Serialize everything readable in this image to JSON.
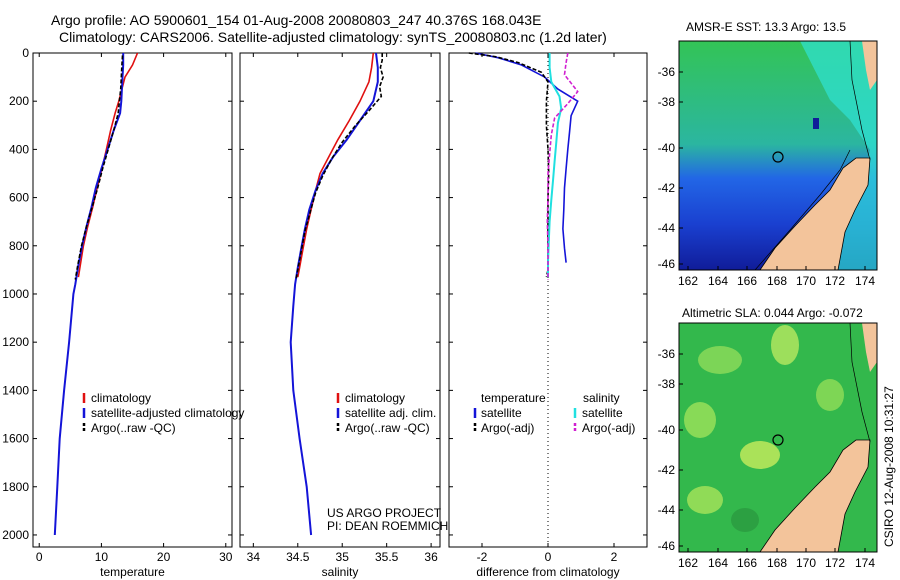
{
  "header": {
    "line1": "Argo profile: AO 5900601_154 01-Aug-2008 20080803_247 40.376S 168.043E",
    "line2": "Climatology: CARS2006. Satellite-adjusted climatology: synTS_20080803.nc (1.2d later)"
  },
  "side_label": "CSIRO 12-Aug-2008 10:31:27",
  "maps": {
    "sst_title": "AMSR-E SST: 13.3 Argo: 13.5",
    "sla_title": "Altimetric SLA: 0.044 Argo: -0.072",
    "lat_ticks": [
      "-36",
      "-38",
      "-40",
      "-42",
      "-44",
      "-46"
    ],
    "lon_ticks": [
      "162",
      "164",
      "166",
      "168",
      "170",
      "172",
      "174"
    ],
    "colors": {
      "ocean_green": "#33c456",
      "ocean_cyan": "#2fe3d6",
      "ocean_blue": "#1155ee",
      "land": "#f3c49b"
    }
  },
  "credit": {
    "line1": "US ARGO PROJECT",
    "line2": "PI: DEAN ROEMMICH"
  },
  "colors": {
    "climatology": "#e01010",
    "satellite": "#1414d8",
    "argo": "#000000",
    "sal_sat": "#20e0e0",
    "sal_argo": "#d020d0"
  },
  "chart_data": [
    {
      "type": "line",
      "xlabel": "temperature",
      "ylim": [
        2050,
        0
      ],
      "xlim": [
        -1,
        31
      ],
      "x_ticks": [
        0,
        10,
        20,
        30
      ],
      "y_ticks": [
        0,
        200,
        400,
        600,
        800,
        1000,
        1200,
        1400,
        1600,
        1800,
        2000
      ],
      "legend": [
        "climatology",
        "satellite-adjusted climatology",
        "Argo(..raw -QC)"
      ],
      "series": [
        {
          "name": "climatology",
          "points": [
            [
              15.8,
              0
            ],
            [
              15.0,
              50
            ],
            [
              13.8,
              100
            ],
            [
              13.3,
              150
            ],
            [
              12.8,
              200
            ],
            [
              12.2,
              250
            ],
            [
              11.5,
              320
            ],
            [
              10.8,
              400
            ],
            [
              10.1,
              480
            ],
            [
              9.3,
              560
            ],
            [
              8.6,
              640
            ],
            [
              7.8,
              720
            ],
            [
              7.1,
              800
            ],
            [
              6.6,
              880
            ],
            [
              6.3,
              930
            ]
          ]
        },
        {
          "name": "satellite-adjusted climatology",
          "points": [
            [
              13.5,
              0
            ],
            [
              13.5,
              50
            ],
            [
              13.4,
              100
            ],
            [
              13.3,
              150
            ],
            [
              13.2,
              200
            ],
            [
              13.0,
              250
            ],
            [
              12.0,
              320
            ],
            [
              11.0,
              400
            ],
            [
              10.0,
              480
            ],
            [
              9.1,
              560
            ],
            [
              8.4,
              640
            ],
            [
              7.6,
              720
            ],
            [
              6.9,
              800
            ],
            [
              6.3,
              880
            ],
            [
              5.8,
              960
            ],
            [
              5.5,
              1000
            ],
            [
              4.8,
              1200
            ],
            [
              4.0,
              1400
            ],
            [
              3.3,
              1600
            ],
            [
              2.9,
              1800
            ],
            [
              2.5,
              2000
            ]
          ]
        },
        {
          "name": "Argo(..raw -QC)",
          "points": [
            [
              13.4,
              10
            ],
            [
              13.3,
              50
            ],
            [
              13.2,
              100
            ],
            [
              13.1,
              150
            ],
            [
              12.9,
              200
            ],
            [
              12.7,
              250
            ],
            [
              12.0,
              320
            ],
            [
              11.1,
              400
            ],
            [
              10.2,
              480
            ],
            [
              9.4,
              560
            ],
            [
              8.5,
              640
            ],
            [
              7.6,
              720
            ],
            [
              6.8,
              800
            ],
            [
              6.2,
              880
            ],
            [
              5.8,
              940
            ]
          ]
        }
      ]
    },
    {
      "type": "line",
      "xlabel": "salinity",
      "ylim": [
        2050,
        0
      ],
      "xlim": [
        33.85,
        36.1
      ],
      "x_ticks": [
        34,
        34.5,
        35,
        35.5,
        36
      ],
      "legend": [
        "climatology",
        "satellite adj. clim.",
        "Argo(..raw -QC)"
      ],
      "series": [
        {
          "name": "climatology",
          "points": [
            [
              35.35,
              0
            ],
            [
              35.33,
              60
            ],
            [
              35.3,
              120
            ],
            [
              35.2,
              200
            ],
            [
              35.08,
              280
            ],
            [
              34.95,
              360
            ],
            [
              34.85,
              430
            ],
            [
              34.75,
              500
            ],
            [
              34.7,
              570
            ],
            [
              34.65,
              650
            ],
            [
              34.6,
              730
            ],
            [
              34.56,
              810
            ],
            [
              34.52,
              890
            ],
            [
              34.5,
              930
            ]
          ]
        },
        {
          "name": "satellite adj. clim.",
          "points": [
            [
              35.38,
              0
            ],
            [
              35.4,
              60
            ],
            [
              35.4,
              120
            ],
            [
              35.35,
              200
            ],
            [
              35.2,
              280
            ],
            [
              35.05,
              360
            ],
            [
              34.9,
              430
            ],
            [
              34.78,
              500
            ],
            [
              34.7,
              570
            ],
            [
              34.63,
              650
            ],
            [
              34.58,
              730
            ],
            [
              34.54,
              810
            ],
            [
              34.5,
              890
            ],
            [
              34.47,
              960
            ],
            [
              34.45,
              1050
            ],
            [
              34.42,
              1200
            ],
            [
              34.45,
              1400
            ],
            [
              34.52,
              1600
            ],
            [
              34.6,
              1800
            ],
            [
              34.65,
              2000
            ]
          ]
        },
        {
          "name": "Argo(..raw -QC)",
          "points": [
            [
              35.45,
              0
            ],
            [
              35.45,
              30
            ],
            [
              35.43,
              60
            ],
            [
              35.46,
              100
            ],
            [
              35.42,
              140
            ],
            [
              35.44,
              180
            ],
            [
              35.3,
              240
            ],
            [
              35.15,
              300
            ],
            [
              35.0,
              370
            ],
            [
              34.88,
              440
            ],
            [
              34.78,
              510
            ],
            [
              34.7,
              580
            ],
            [
              34.64,
              660
            ],
            [
              34.58,
              740
            ],
            [
              34.54,
              820
            ],
            [
              34.5,
              900
            ],
            [
              34.48,
              940
            ]
          ]
        }
      ]
    },
    {
      "type": "line",
      "xlabel": "difference from climatology",
      "ylim": [
        2050,
        0
      ],
      "xlim": [
        -3,
        3
      ],
      "x_ticks": [
        -2,
        0,
        2
      ],
      "legend": [
        "temperature",
        "salinity",
        "satellite",
        "satellite",
        "Argo(-adj)",
        "Argo(-adj)"
      ],
      "series": [
        {
          "name": "temperature satellite",
          "points": [
            [
              -2.2,
              0
            ],
            [
              -1.5,
              20
            ],
            [
              -0.8,
              50
            ],
            [
              -0.1,
              100
            ],
            [
              0.3,
              150
            ],
            [
              0.9,
              200
            ],
            [
              0.7,
              260
            ],
            [
              0.65,
              330
            ],
            [
              0.6,
              400
            ],
            [
              0.55,
              480
            ],
            [
              0.5,
              560
            ],
            [
              0.48,
              650
            ],
            [
              0.45,
              730
            ],
            [
              0.5,
              810
            ],
            [
              0.55,
              870
            ]
          ]
        },
        {
          "name": "temperature Argo(-adj)",
          "points": [
            [
              -2.4,
              0
            ],
            [
              -1.6,
              15
            ],
            [
              -0.9,
              40
            ],
            [
              -0.2,
              80
            ],
            [
              0.0,
              120
            ],
            [
              -0.05,
              200
            ],
            [
              -0.05,
              300
            ],
            [
              0.0,
              400
            ],
            [
              0.02,
              500
            ],
            [
              0.0,
              600
            ],
            [
              0.0,
              700
            ],
            [
              0.0,
              800
            ],
            [
              0.0,
              900
            ],
            [
              -0.05,
              930
            ]
          ]
        },
        {
          "name": "salinity satellite",
          "points": [
            [
              0.05,
              0
            ],
            [
              0.05,
              60
            ],
            [
              0.1,
              120
            ],
            [
              0.35,
              180
            ],
            [
              0.4,
              230
            ],
            [
              0.3,
              290
            ],
            [
              0.25,
              370
            ],
            [
              0.2,
              450
            ],
            [
              0.15,
              530
            ],
            [
              0.1,
              610
            ],
            [
              0.05,
              700
            ],
            [
              0.02,
              790
            ],
            [
              0.0,
              870
            ],
            [
              0.0,
              930
            ]
          ]
        },
        {
          "name": "salinity Argo(-adj)",
          "points": [
            [
              0.6,
              0
            ],
            [
              0.55,
              40
            ],
            [
              0.5,
              90
            ],
            [
              0.9,
              160
            ],
            [
              0.6,
              210
            ],
            [
              0.2,
              270
            ],
            [
              0.1,
              340
            ],
            [
              0.05,
              420
            ],
            [
              0.0,
              500
            ],
            [
              0.0,
              600
            ],
            [
              -0.02,
              700
            ],
            [
              0.0,
              800
            ],
            [
              0.0,
              900
            ],
            [
              0.0,
              940
            ]
          ]
        }
      ]
    }
  ]
}
